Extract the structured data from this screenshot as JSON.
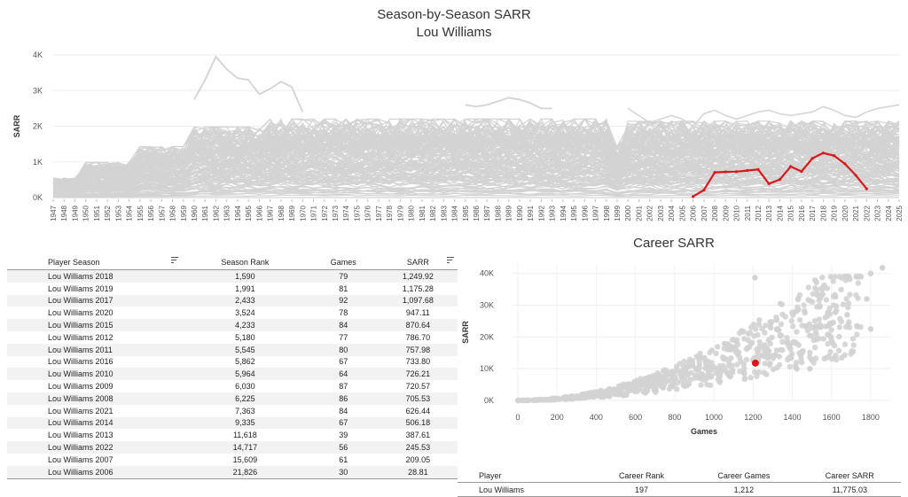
{
  "header": {
    "title": "Season-by-Season SARR",
    "subtitle": "Lou Williams"
  },
  "colors": {
    "highlight": "#d7191c",
    "background_lines": "#d3d3d3"
  },
  "chart_data": [
    {
      "type": "line",
      "title": "Season-by-Season SARR",
      "subtitle": "Lou Williams",
      "ylabel": "SARR",
      "xlabel": "",
      "ylim": [
        0,
        4000
      ],
      "yticks": [
        0,
        1000,
        2000,
        3000,
        4000
      ],
      "ytick_labels": [
        "0K",
        "1K",
        "2K",
        "3K",
        "4K"
      ],
      "x_start": 1947,
      "x_end": 2025,
      "grid": true,
      "highlight_series": {
        "name": "Lou Williams",
        "x": [
          2006,
          2007,
          2008,
          2009,
          2010,
          2011,
          2012,
          2013,
          2014,
          2015,
          2016,
          2017,
          2018,
          2019,
          2020,
          2021,
          2022
        ],
        "values": [
          28.81,
          209.05,
          705.53,
          720.57,
          726.21,
          757.98,
          786.7,
          387.61,
          506.18,
          870.64,
          733.8,
          1097.68,
          1249.92,
          1175.28,
          947.11,
          626.44,
          245.53
        ]
      },
      "background_note": "other players' seasons drawn as grey lines"
    },
    {
      "type": "scatter",
      "title": "Career SARR",
      "xlabel": "Games",
      "ylabel": "SARR",
      "xlim": [
        0,
        1900
      ],
      "ylim": [
        0,
        43000
      ],
      "xticks": [
        0,
        200,
        400,
        600,
        800,
        1000,
        1200,
        1400,
        1600,
        1800
      ],
      "yticks": [
        0,
        10000,
        20000,
        30000,
        40000
      ],
      "ytick_labels": [
        "0K",
        "10K",
        "20K",
        "30K",
        "40K"
      ],
      "highlight_point": {
        "name": "Lou Williams",
        "x": 1212,
        "y": 11775.03
      },
      "outlier_points": [
        {
          "x": 1860,
          "y": 41800
        },
        {
          "x": 1800,
          "y": 40000
        },
        {
          "x": 1210,
          "y": 38700
        },
        {
          "x": 1800,
          "y": 22500
        },
        {
          "x": 1780,
          "y": 32000
        },
        {
          "x": 1490,
          "y": 10000
        },
        {
          "x": 1340,
          "y": 30500
        },
        {
          "x": 1620,
          "y": 27800
        },
        {
          "x": 1680,
          "y": 27000
        }
      ]
    }
  ],
  "season_table": {
    "headers": [
      "Player Season",
      "Season Rank",
      "Games",
      "SARR"
    ],
    "rows": [
      [
        "Lou Williams 2018",
        "1,590",
        "79",
        "1,249.92"
      ],
      [
        "Lou Williams 2019",
        "1,991",
        "81",
        "1,175.28"
      ],
      [
        "Lou Williams 2017",
        "2,433",
        "92",
        "1,097.68"
      ],
      [
        "Lou Williams 2020",
        "3,524",
        "78",
        "947.11"
      ],
      [
        "Lou Williams 2015",
        "4,233",
        "84",
        "870.64"
      ],
      [
        "Lou Williams 2012",
        "5,180",
        "77",
        "786.70"
      ],
      [
        "Lou Williams 2011",
        "5,545",
        "80",
        "757.98"
      ],
      [
        "Lou Williams 2016",
        "5,862",
        "67",
        "733.80"
      ],
      [
        "Lou Williams 2010",
        "5,964",
        "64",
        "726.21"
      ],
      [
        "Lou Williams 2009",
        "6,030",
        "87",
        "720.57"
      ],
      [
        "Lou Williams 2008",
        "6,225",
        "86",
        "705.53"
      ],
      [
        "Lou Williams 2021",
        "7,363",
        "84",
        "626.44"
      ],
      [
        "Lou Williams 2014",
        "9,335",
        "67",
        "506.18"
      ],
      [
        "Lou Williams 2013",
        "11,618",
        "39",
        "387.61"
      ],
      [
        "Lou Williams 2022",
        "14,717",
        "56",
        "245.53"
      ],
      [
        "Lou Williams 2007",
        "15,609",
        "61",
        "209.05"
      ],
      [
        "Lou Williams 2006",
        "21,826",
        "30",
        "28.81"
      ]
    ]
  },
  "career_table": {
    "headers": [
      "Player",
      "Career Rank",
      "Career Games",
      "Career SARR"
    ],
    "row": [
      "Lou Williams",
      "197",
      "1,212",
      "11,775.03"
    ]
  }
}
